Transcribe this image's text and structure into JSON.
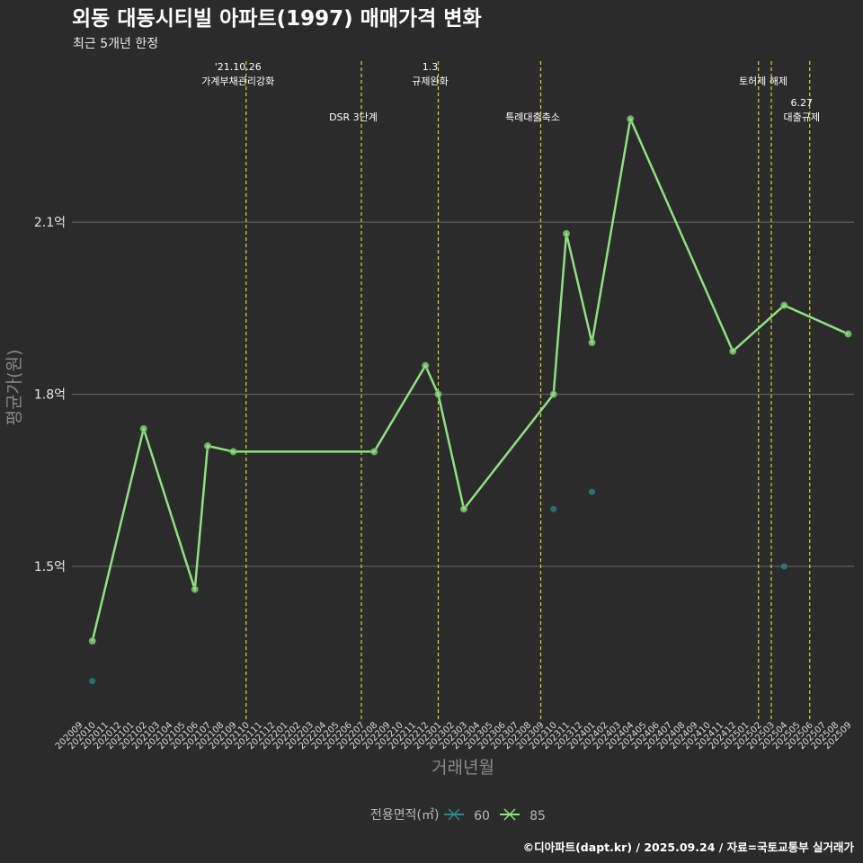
{
  "chart_data": {
    "type": "line",
    "title": "외동 대동시티빌 아파트(1997) 매매가격 변화",
    "subtitle": "최근 5개년 한정",
    "xlabel": "거래년월",
    "ylabel": "평균가(원)",
    "caption": "©디아파트(dapt.kr) / 2025.09.24 / 자료=국토교통부 실거래가",
    "categories": [
      "202009",
      "202010",
      "202011",
      "202012",
      "202101",
      "202102",
      "202103",
      "202104",
      "202105",
      "202106",
      "202107",
      "202108",
      "202109",
      "202110",
      "202111",
      "202112",
      "202201",
      "202202",
      "202203",
      "202204",
      "202205",
      "202206",
      "202207",
      "202208",
      "202209",
      "202210",
      "202211",
      "202212",
      "202301",
      "202302",
      "202303",
      "202304",
      "202305",
      "202306",
      "202307",
      "202308",
      "202309",
      "202310",
      "202311",
      "202312",
      "202401",
      "202402",
      "202403",
      "202404",
      "202405",
      "202406",
      "202407",
      "202408",
      "202409",
      "202410",
      "202411",
      "202412",
      "202501",
      "202502",
      "202503",
      "202504",
      "202505",
      "202506",
      "202507",
      "202508",
      "202509"
    ],
    "ylim": [
      1.24,
      2.39
    ],
    "yticks": [
      {
        "value": 1.5,
        "label": "1.5억"
      },
      {
        "value": 1.8,
        "label": "1.8억"
      },
      {
        "value": 2.1,
        "label": "2.1억"
      }
    ],
    "legend": {
      "title": "전용면적(㎡)",
      "placement": "bottom",
      "entries": [
        {
          "name": "60",
          "color": "#2a8a8a"
        },
        {
          "name": "85",
          "color": "#8fe082"
        }
      ]
    },
    "series": [
      {
        "name": "60",
        "color": "#2a8a8a",
        "style": "points",
        "points": [
          [
            "202010",
            1.3
          ],
          [
            "202310",
            1.6
          ],
          [
            "202401",
            1.63
          ],
          [
            "202504",
            1.5
          ]
        ]
      },
      {
        "name": "85",
        "color": "#8fe082",
        "style": "line",
        "points": [
          [
            "202010",
            1.37
          ],
          [
            "202102",
            1.74
          ],
          [
            "202106",
            1.46
          ],
          [
            "202107",
            1.71
          ],
          [
            "202109",
            1.7
          ],
          [
            "202208",
            1.7
          ],
          [
            "202212",
            1.85
          ],
          [
            "202301",
            1.8
          ],
          [
            "202303",
            1.6
          ],
          [
            "202310",
            1.8
          ],
          [
            "202311",
            2.08
          ],
          [
            "202401",
            1.89
          ],
          [
            "202404",
            2.28
          ],
          [
            "202412",
            1.875
          ],
          [
            "202504",
            1.955
          ],
          [
            "202509",
            1.905
          ]
        ]
      }
    ],
    "events": [
      {
        "at": "202110",
        "lines": [
          "'21.10.26",
          "가계부채관리강화"
        ],
        "row": 0
      },
      {
        "at": "202207",
        "lines": [
          "DSR 3단계"
        ],
        "row": 1
      },
      {
        "at": "202301",
        "lines": [
          "1.3",
          "규제완화"
        ],
        "row": 0
      },
      {
        "at": "202309",
        "lines": [
          "특례대출축소"
        ],
        "row": 1
      },
      {
        "at": "202502",
        "lines": [],
        "row": 0
      },
      {
        "at": "202503",
        "lines": [
          "토허제 해제"
        ],
        "row": 0
      },
      {
        "at": "202506",
        "lines": [
          "6.27",
          "대출규제"
        ],
        "row": 1
      }
    ],
    "event_color": "#d4d42a"
  }
}
